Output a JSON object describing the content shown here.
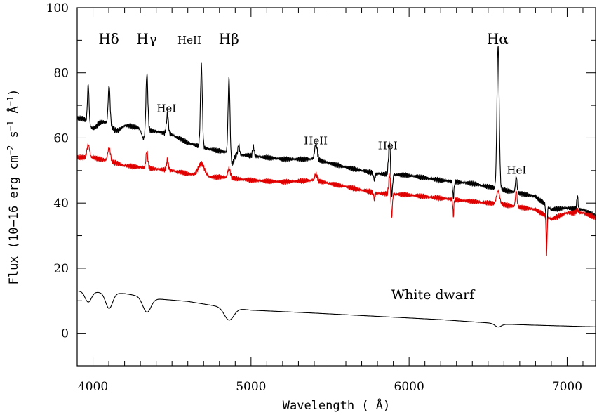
{
  "chart_data": {
    "type": "line",
    "title": "",
    "xlabel": "Wavelength ( Å)",
    "ylabel": "Flux (10-16 erg cm^-2 s^-1 Å^-1)",
    "ylabel_parts": [
      "Flux (10−16 erg cm",
      "−2",
      " s",
      "−1",
      " Å",
      "−1",
      ")"
    ],
    "xlim": [
      3900,
      7180
    ],
    "ylim": [
      -10,
      100
    ],
    "x_ticks": [
      4000,
      5000,
      6000,
      7000
    ],
    "x_tick_labels": [
      "4000",
      "5000",
      "6000",
      "7000"
    ],
    "y_ticks": [
      0,
      20,
      40,
      60,
      80,
      100
    ],
    "y_tick_labels": [
      "0",
      "20",
      "40",
      "60",
      "80",
      "100"
    ],
    "grid": false,
    "legend": "none",
    "series": [
      {
        "color": "#000000",
        "continuum": [
          [
            3900,
            66
          ],
          [
            4000,
            66
          ],
          [
            4100,
            64.5
          ],
          [
            4200,
            64
          ],
          [
            4300,
            63
          ],
          [
            4400,
            62
          ],
          [
            4500,
            61
          ],
          [
            4600,
            58.5
          ],
          [
            4700,
            57
          ],
          [
            4800,
            56
          ],
          [
            4900,
            55
          ],
          [
            5000,
            54.5
          ],
          [
            5200,
            53.5
          ],
          [
            5400,
            53.5
          ],
          [
            5600,
            51
          ],
          [
            5800,
            49
          ],
          [
            6000,
            48.5
          ],
          [
            6200,
            47
          ],
          [
            6400,
            46
          ],
          [
            6600,
            44
          ],
          [
            6800,
            42
          ],
          [
            6900,
            38
          ],
          [
            7000,
            38.5
          ],
          [
            7100,
            38
          ],
          [
            7180,
            36
          ]
        ],
        "features": [
          [
            3970,
            12,
            5
          ],
          [
            4102,
            12,
            6
          ],
          [
            4341,
            18,
            6
          ],
          [
            4471,
            6,
            6
          ],
          [
            4686,
            25,
            6
          ],
          [
            4861,
            24,
            6
          ],
          [
            4922,
            3,
            5
          ],
          [
            5015,
            3,
            5
          ],
          [
            5411,
            5,
            8
          ],
          [
            5876,
            10,
            6
          ],
          [
            6563,
            44,
            7
          ],
          [
            6678,
            5,
            5
          ],
          [
            7065,
            4,
            4
          ],
          [
            4000,
            -3,
            25
          ],
          [
            4150,
            -2,
            25
          ],
          [
            4320,
            -3,
            12
          ],
          [
            4880,
            -3,
            12
          ],
          [
            5780,
            -2,
            5
          ],
          [
            5890,
            -7,
            5
          ],
          [
            6280,
            -5,
            4
          ],
          [
            6870,
            -12,
            3.5
          ]
        ]
      },
      {
        "color": "#e00000",
        "continuum": [
          [
            3900,
            54
          ],
          [
            4000,
            54
          ],
          [
            4100,
            53
          ],
          [
            4200,
            51.5
          ],
          [
            4300,
            51
          ],
          [
            4400,
            50.5
          ],
          [
            4500,
            50
          ],
          [
            4600,
            49
          ],
          [
            4700,
            48
          ],
          [
            4800,
            48
          ],
          [
            4900,
            47.5
          ],
          [
            5000,
            47
          ],
          [
            5200,
            46.5
          ],
          [
            5400,
            47
          ],
          [
            5600,
            45
          ],
          [
            5800,
            43
          ],
          [
            6000,
            42.5
          ],
          [
            6200,
            41.5
          ],
          [
            6400,
            40.5
          ],
          [
            6600,
            39.5
          ],
          [
            6800,
            38
          ],
          [
            6900,
            35
          ],
          [
            7000,
            37
          ],
          [
            7100,
            37
          ],
          [
            7180,
            35.5
          ]
        ],
        "features": [
          [
            3970,
            4,
            8
          ],
          [
            4102,
            4,
            8
          ],
          [
            4341,
            5,
            6
          ],
          [
            4471,
            3,
            6
          ],
          [
            4686,
            4,
            20
          ],
          [
            4861,
            3,
            8
          ],
          [
            5411,
            2,
            8
          ],
          [
            5876,
            6,
            5
          ],
          [
            6563,
            4,
            10
          ],
          [
            6678,
            5,
            5
          ],
          [
            7065,
            1,
            6
          ],
          [
            5780,
            -2,
            4
          ],
          [
            5890,
            -7,
            4
          ],
          [
            6280,
            -5,
            3
          ],
          [
            6870,
            -12,
            3
          ]
        ]
      },
      {
        "name": "White dwarf",
        "color": "#000000",
        "continuum": [
          [
            3900,
            13
          ],
          [
            4000,
            12.7
          ],
          [
            4200,
            12.2
          ],
          [
            4400,
            10.6
          ],
          [
            4600,
            9.8
          ],
          [
            4800,
            8.2
          ],
          [
            5000,
            7.1
          ],
          [
            5400,
            6.2
          ],
          [
            5800,
            5.2
          ],
          [
            6200,
            4.2
          ],
          [
            6500,
            3.2
          ],
          [
            6600,
            2.8
          ],
          [
            6800,
            2.5
          ],
          [
            7180,
            2
          ]
        ],
        "features": [
          [
            3970,
            -3.2,
            20
          ],
          [
            4102,
            -4.8,
            22
          ],
          [
            4341,
            -4.6,
            26
          ],
          [
            4861,
            -3.8,
            30
          ],
          [
            6563,
            -1,
            20
          ]
        ]
      }
    ],
    "annotations": [
      {
        "text": "Hδ",
        "x": 4100,
        "y": 89,
        "size": 20
      },
      {
        "text": "Hγ",
        "x": 4340,
        "y": 89,
        "size": 20
      },
      {
        "text": "HeII",
        "x": 4610,
        "y": 89,
        "size": 15
      },
      {
        "text": "Hβ",
        "x": 4860,
        "y": 89,
        "size": 20
      },
      {
        "text": "HeI",
        "x": 4465,
        "y": 68,
        "size": 15
      },
      {
        "text": "HeII",
        "x": 5410,
        "y": 58,
        "size": 15
      },
      {
        "text": "HeI",
        "x": 5865,
        "y": 56.5,
        "size": 15
      },
      {
        "text": "Hα",
        "x": 6560,
        "y": 89,
        "size": 20
      },
      {
        "text": "HeI",
        "x": 6680,
        "y": 49,
        "size": 15
      },
      {
        "text": "White dwarf",
        "x": 6150,
        "y": 10.5,
        "size": 19,
        "anchor": "middle",
        "mono": true
      }
    ]
  }
}
